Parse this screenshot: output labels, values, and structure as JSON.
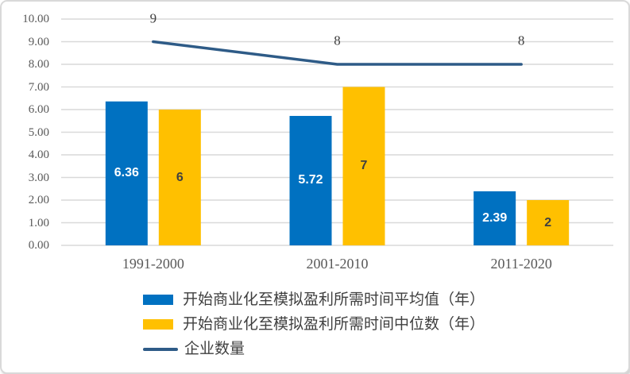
{
  "chart_data": {
    "type": "combo-bar-line",
    "title": "",
    "categories": [
      "1991-2000",
      "2001-2010",
      "2011-2020"
    ],
    "series": [
      {
        "name": "开始商业化至模拟盈利所需时间平均值（年）",
        "type": "bar",
        "color": "#0071C1",
        "values": [
          6.36,
          5.72,
          2.39
        ],
        "data_labels": [
          "6.36",
          "5.72",
          "2.39"
        ],
        "data_label_color": "#FFFFFF"
      },
      {
        "name": "开始商业化至模拟盈利所需时间中位数（年）",
        "type": "bar",
        "color": "#FFC000",
        "values": [
          6,
          7,
          2
        ],
        "data_labels": [
          "6",
          "7",
          "2"
        ],
        "data_label_color": "#404040"
      },
      {
        "name": "企业数量",
        "type": "line",
        "color": "#2E5B87",
        "values": [
          9,
          8,
          8
        ],
        "data_labels": [
          "9",
          "8",
          "8"
        ],
        "data_label_color": "#404040"
      }
    ],
    "ylim": [
      0,
      10
    ],
    "y_tick_labels": [
      "0.00",
      "1.00",
      "2.00",
      "3.00",
      "4.00",
      "5.00",
      "6.00",
      "7.00",
      "8.00",
      "9.00",
      "10.00"
    ],
    "grid": true,
    "gridline_color": "#D9D9D9",
    "axis_text_color": "#595959",
    "legend_position": "bottom-left"
  },
  "frame": {
    "background": "#FFFFFF",
    "border_color": "#D9D9D9"
  }
}
